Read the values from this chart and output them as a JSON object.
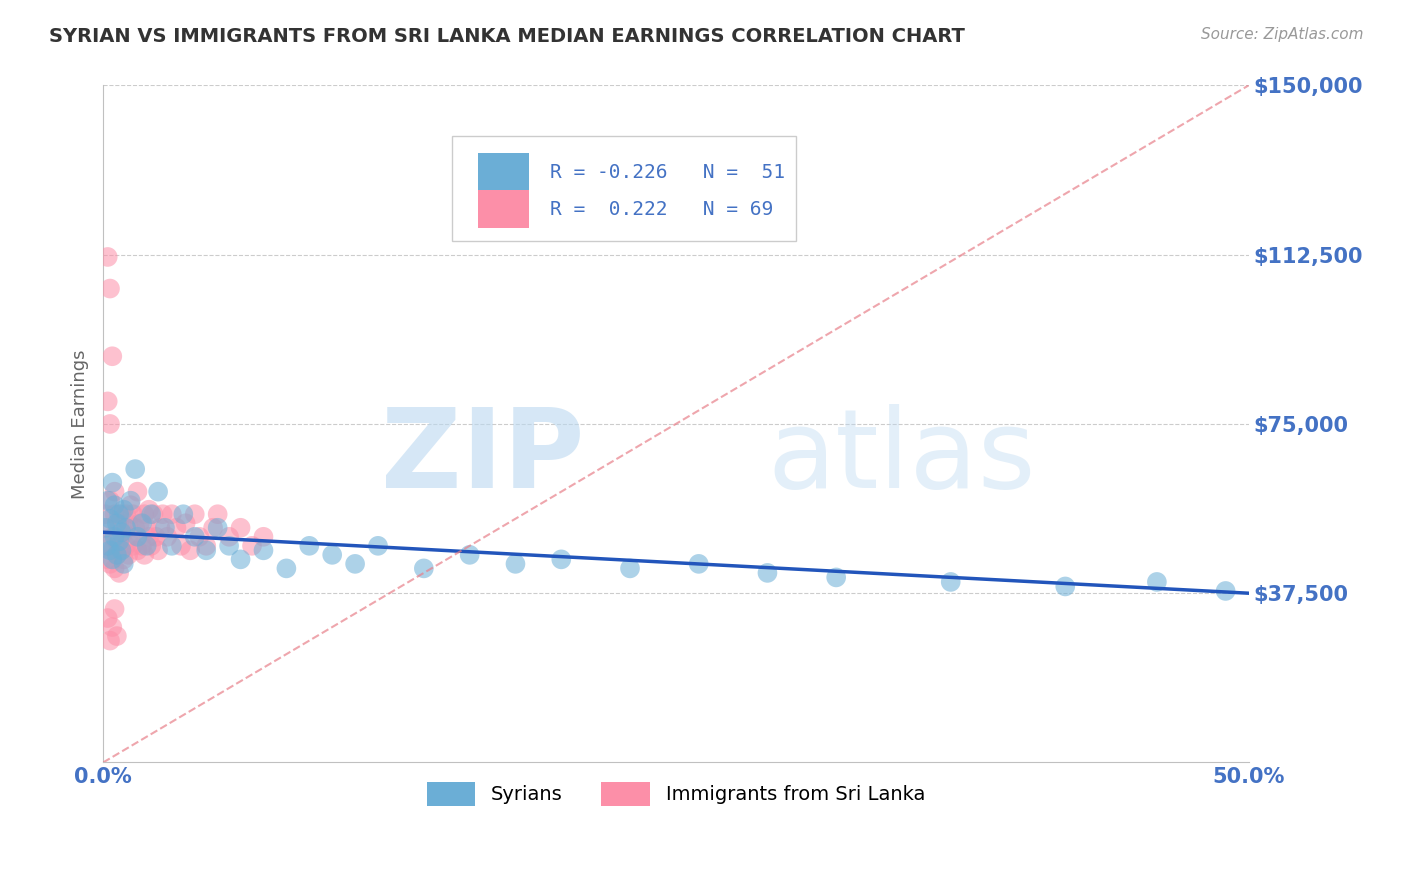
{
  "title": "SYRIAN VS IMMIGRANTS FROM SRI LANKA MEDIAN EARNINGS CORRELATION CHART",
  "source": "Source: ZipAtlas.com",
  "ylabel": "Median Earnings",
  "xlim": [
    0.0,
    0.5
  ],
  "ylim": [
    0,
    150000
  ],
  "yticks": [
    0,
    37500,
    75000,
    112500,
    150000
  ],
  "ytick_labels": [
    "",
    "$37,500",
    "$75,000",
    "$112,500",
    "$150,000"
  ],
  "xticks": [
    0.0,
    0.5
  ],
  "xtick_labels": [
    "0.0%",
    "50.0%"
  ],
  "watermark_zip": "ZIP",
  "watermark_atlas": "atlas",
  "syrians_color": "#6baed6",
  "srilanka_color": "#fc8fa8",
  "syrians_label": "Syrians",
  "srilanka_label": "Immigrants from Sri Lanka",
  "background_color": "#ffffff",
  "grid_color": "#cccccc",
  "title_color": "#333333",
  "axis_label_color": "#666666",
  "ytick_color": "#4472c4",
  "xtick_color": "#4472c4",
  "blue_line_color": "#2255bb",
  "pink_line_color": "#e8808a",
  "syrians_x": [
    0.001,
    0.002,
    0.002,
    0.003,
    0.003,
    0.004,
    0.004,
    0.005,
    0.005,
    0.006,
    0.006,
    0.007,
    0.007,
    0.008,
    0.008,
    0.009,
    0.009,
    0.01,
    0.012,
    0.014,
    0.015,
    0.017,
    0.019,
    0.021,
    0.024,
    0.027,
    0.03,
    0.035,
    0.04,
    0.045,
    0.05,
    0.055,
    0.06,
    0.07,
    0.08,
    0.09,
    0.1,
    0.11,
    0.12,
    0.14,
    0.16,
    0.18,
    0.2,
    0.23,
    0.26,
    0.29,
    0.32,
    0.37,
    0.42,
    0.46,
    0.49
  ],
  "syrians_y": [
    52000,
    58000,
    48000,
    54000,
    47000,
    62000,
    45000,
    57000,
    50000,
    53000,
    46000,
    55000,
    49000,
    51000,
    47000,
    56000,
    44000,
    52000,
    58000,
    65000,
    50000,
    53000,
    48000,
    55000,
    60000,
    52000,
    48000,
    55000,
    50000,
    47000,
    52000,
    48000,
    45000,
    47000,
    43000,
    48000,
    46000,
    44000,
    48000,
    43000,
    46000,
    44000,
    45000,
    43000,
    44000,
    42000,
    41000,
    40000,
    39000,
    40000,
    38000
  ],
  "srilanka_x": [
    0.001,
    0.001,
    0.002,
    0.002,
    0.003,
    0.003,
    0.004,
    0.004,
    0.005,
    0.005,
    0.005,
    0.006,
    0.006,
    0.007,
    0.007,
    0.007,
    0.008,
    0.008,
    0.009,
    0.009,
    0.01,
    0.01,
    0.011,
    0.011,
    0.012,
    0.012,
    0.013,
    0.013,
    0.014,
    0.015,
    0.015,
    0.016,
    0.017,
    0.018,
    0.018,
    0.019,
    0.02,
    0.02,
    0.021,
    0.022,
    0.023,
    0.024,
    0.025,
    0.026,
    0.028,
    0.03,
    0.032,
    0.034,
    0.036,
    0.038,
    0.04,
    0.042,
    0.045,
    0.048,
    0.05,
    0.055,
    0.06,
    0.065,
    0.07,
    0.002,
    0.003,
    0.004,
    0.002,
    0.003,
    0.002,
    0.004,
    0.006,
    0.005,
    0.003
  ],
  "srilanka_y": [
    55000,
    48000,
    52000,
    45000,
    58000,
    44000,
    50000,
    47000,
    55000,
    43000,
    60000,
    49000,
    46000,
    53000,
    48000,
    42000,
    55000,
    47000,
    51000,
    45000,
    55000,
    48000,
    53000,
    46000,
    57000,
    50000,
    48000,
    55000,
    52000,
    60000,
    47000,
    53000,
    48000,
    55000,
    46000,
    52000,
    50000,
    56000,
    48000,
    55000,
    50000,
    47000,
    52000,
    55000,
    50000,
    55000,
    52000,
    48000,
    53000,
    47000,
    55000,
    50000,
    48000,
    52000,
    55000,
    50000,
    52000,
    48000,
    50000,
    112000,
    105000,
    90000,
    80000,
    75000,
    32000,
    30000,
    28000,
    34000,
    27000
  ]
}
